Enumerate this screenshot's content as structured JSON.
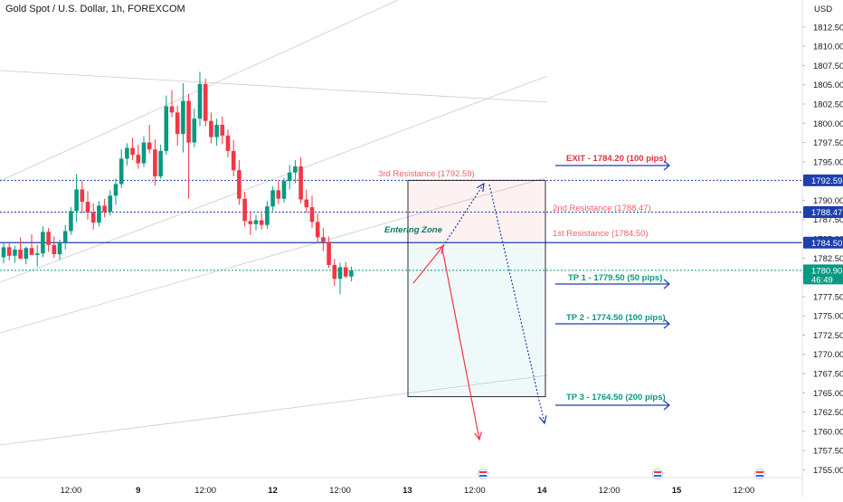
{
  "chart_data": {
    "type": "candlestick",
    "title": "Gold Spot / U.S. Dollar, 1h, FOREXCOM",
    "currency": "USD",
    "ylim": [
      1754,
      1816
    ],
    "y_ticks": [
      1812.5,
      1810,
      1807.5,
      1805,
      1802.5,
      1800,
      1797.5,
      1795,
      1792.5,
      1790,
      1787.5,
      1785,
      1782.5,
      1780,
      1777.5,
      1775,
      1772.5,
      1770,
      1767.5,
      1765,
      1762.5,
      1760,
      1757.5,
      1755
    ],
    "y_tick_labels": [
      "1812.50",
      "1810.00",
      "1807.50",
      "1805.00",
      "1802.50",
      "1800.00",
      "1797.50",
      "1795.00",
      "1792.50",
      "1790.00",
      "1787.50",
      "1785.00",
      "1782.50",
      "1780.00",
      "1777.50",
      "1775.00",
      "1772.50",
      "1770.00",
      "1767.50",
      "1765.00",
      "1762.50",
      "1760.00",
      "1757.50",
      "1755.00"
    ],
    "x_labels": [
      "12:00",
      "9",
      "12:00",
      "12",
      "12:00",
      "13",
      "12:00",
      "14",
      "12:00",
      "15",
      "12:00"
    ],
    "bar_count": 160,
    "x_label_bars": [
      12,
      24,
      36,
      48,
      60,
      72,
      84,
      96,
      108,
      120,
      132
    ],
    "candles": [
      [
        1782.6,
        1784.4,
        1781.8,
        1783.9
      ],
      [
        1783.9,
        1784.6,
        1782.2,
        1782.8
      ],
      [
        1782.8,
        1784.1,
        1781.9,
        1783.6
      ],
      [
        1783.6,
        1785.2,
        1782.9,
        1782.4
      ],
      [
        1782.4,
        1784.0,
        1781.7,
        1783.8
      ],
      [
        1783.8,
        1785.6,
        1783.0,
        1782.9
      ],
      [
        1782.9,
        1784.2,
        1781.4,
        1783.1
      ],
      [
        1783.1,
        1786.6,
        1782.6,
        1785.9
      ],
      [
        1785.9,
        1786.4,
        1783.3,
        1784.2
      ],
      [
        1784.2,
        1785.3,
        1782.5,
        1783.0
      ],
      [
        1783.0,
        1784.9,
        1782.3,
        1784.5
      ],
      [
        1784.5,
        1786.8,
        1783.6,
        1786.0
      ],
      [
        1786.0,
        1789.1,
        1785.5,
        1788.6
      ],
      [
        1788.6,
        1793.4,
        1787.2,
        1791.4
      ],
      [
        1791.4,
        1792.6,
        1788.3,
        1789.8
      ],
      [
        1789.8,
        1791.2,
        1787.5,
        1788.4
      ],
      [
        1788.4,
        1789.6,
        1786.2,
        1787.1
      ],
      [
        1787.1,
        1789.9,
        1786.6,
        1789.3
      ],
      [
        1789.3,
        1790.2,
        1787.8,
        1788.5
      ],
      [
        1788.5,
        1791.3,
        1788.0,
        1790.6
      ],
      [
        1790.6,
        1792.8,
        1789.4,
        1792.1
      ],
      [
        1792.1,
        1796.6,
        1791.6,
        1795.4
      ],
      [
        1795.4,
        1797.4,
        1794.5,
        1796.8
      ],
      [
        1796.8,
        1798.1,
        1795.2,
        1795.9
      ],
      [
        1795.9,
        1797.2,
        1794.1,
        1794.8
      ],
      [
        1794.8,
        1798.3,
        1794.3,
        1797.5
      ],
      [
        1797.5,
        1799.8,
        1796.1,
        1796.6
      ],
      [
        1796.6,
        1797.9,
        1791.9,
        1793.1
      ],
      [
        1793.1,
        1797.2,
        1792.8,
        1796.4
      ],
      [
        1796.4,
        1803.6,
        1795.9,
        1802.2
      ],
      [
        1802.2,
        1804.3,
        1800.8,
        1801.4
      ],
      [
        1801.4,
        1802.3,
        1797.1,
        1798.6
      ],
      [
        1798.6,
        1805.2,
        1796.2,
        1802.9
      ],
      [
        1802.9,
        1803.8,
        1790.2,
        1797.5
      ],
      [
        1797.5,
        1801.9,
        1796.9,
        1800.6
      ],
      [
        1800.6,
        1806.7,
        1799.6,
        1805.1
      ],
      [
        1805.1,
        1805.8,
        1799.6,
        1800.3
      ],
      [
        1800.3,
        1801.4,
        1797.4,
        1798.2
      ],
      [
        1798.2,
        1800.6,
        1797.1,
        1799.8
      ],
      [
        1799.8,
        1800.9,
        1797.3,
        1798.4
      ],
      [
        1798.4,
        1799.2,
        1795.6,
        1796.4
      ],
      [
        1796.4,
        1797.8,
        1793.1,
        1793.9
      ],
      [
        1793.9,
        1795.2,
        1789.4,
        1790.2
      ],
      [
        1790.2,
        1791.1,
        1786.6,
        1787.3
      ],
      [
        1787.3,
        1788.6,
        1785.5,
        1786.9
      ],
      [
        1786.9,
        1788.1,
        1786.1,
        1787.4
      ],
      [
        1787.4,
        1788.3,
        1786.2,
        1786.8
      ],
      [
        1786.8,
        1789.9,
        1786.3,
        1789.2
      ],
      [
        1789.2,
        1791.8,
        1788.6,
        1791.3
      ],
      [
        1791.3,
        1792.6,
        1789.5,
        1790.2
      ],
      [
        1790.2,
        1792.9,
        1789.7,
        1792.5
      ],
      [
        1792.5,
        1794.6,
        1791.4,
        1793.6
      ],
      [
        1793.6,
        1795.2,
        1792.2,
        1794.4
      ],
      [
        1794.4,
        1795.6,
        1789.6,
        1790.1
      ],
      [
        1790.1,
        1791.4,
        1788.4,
        1789.1
      ],
      [
        1789.1,
        1790.6,
        1786.4,
        1787.2
      ],
      [
        1787.2,
        1788.3,
        1784.6,
        1785.2
      ],
      [
        1785.2,
        1786.4,
        1783.4,
        1784.6
      ],
      [
        1784.6,
        1785.3,
        1781.2,
        1781.6
      ],
      [
        1781.6,
        1782.4,
        1778.9,
        1779.8
      ],
      [
        1779.8,
        1781.9,
        1777.8,
        1781.3
      ],
      [
        1781.3,
        1782.0,
        1779.9,
        1780.1
      ],
      [
        1780.1,
        1781.4,
        1779.5,
        1780.9
      ]
    ],
    "candle_start_bar": 0,
    "horizontal_levels": [
      {
        "price": 1792.59,
        "label": "1792.59",
        "style": "dotted",
        "color": "#1e3fae"
      },
      {
        "price": 1788.47,
        "label": "1788.47",
        "style": "dotted",
        "color": "#1e3fae"
      },
      {
        "price": 1784.5,
        "label": "1784.50",
        "style": "solid",
        "color": "#1e3fae"
      },
      {
        "price": 1780.9,
        "label": "1780.90",
        "style": "dotted",
        "color": "#089981"
      }
    ],
    "current_price_countdown": "46:49",
    "annotations": {
      "resistance_3": "3rd Resistance (1792.59)",
      "resistance_2": "2nd Resistance (1788.47)",
      "resistance_1": "1st Resistance (1784.50)",
      "entering_zone": "Entering Zone",
      "exit": "EXIT - 1784.20 (100 pips)",
      "tp1": "TP 1 - 1779.50 (50 pips)",
      "tp2": "TP 2 - 1774.50 (100 pips)",
      "tp3": "TP 3 - 1764.50 (200 pips)"
    },
    "position_box": {
      "entry": 1784.5,
      "stop": 1792.59,
      "target": 1764.5
    },
    "colors": {
      "up": "#089981",
      "down": "#f23645",
      "level": "#1e3fae",
      "resistance_text": "#f0616a",
      "tp_text": "#089981",
      "exit_text": "#e0303e",
      "arrow_blue": "#1e3fae",
      "arrow_red": "#f23645"
    }
  }
}
